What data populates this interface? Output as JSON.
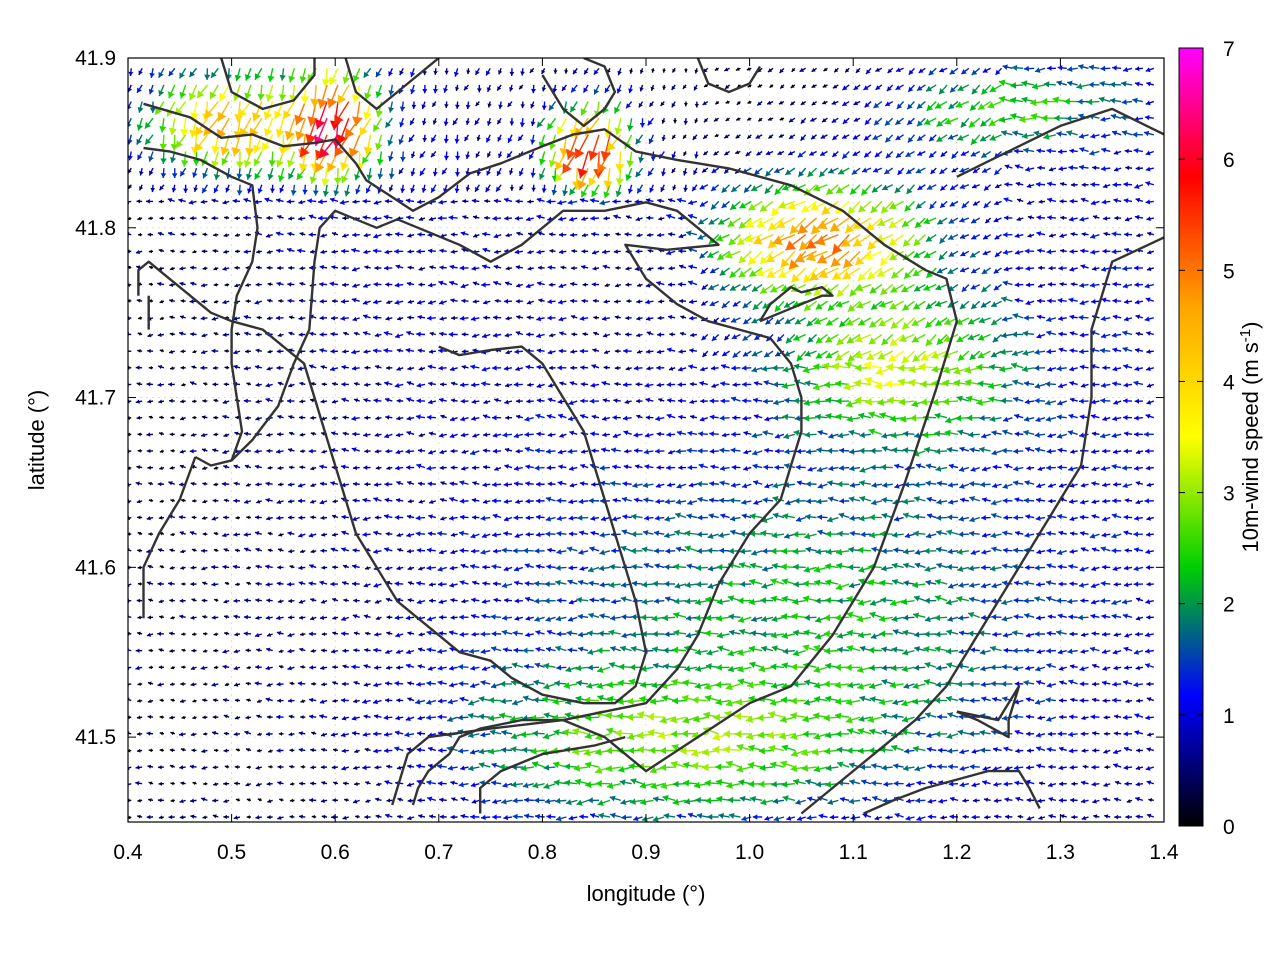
{
  "chart_data": {
    "type": "vector-field",
    "xlabel": "longitude (°)",
    "ylabel": "latitude (°)",
    "xlim": [
      0.4,
      1.4
    ],
    "ylim": [
      41.45,
      41.9
    ],
    "xticks": [
      "0.4",
      "0.5",
      "0.6",
      "0.7",
      "0.8",
      "0.9",
      "1.0",
      "1.1",
      "1.2",
      "1.3",
      "1.4"
    ],
    "yticks": [
      "41.5",
      "41.6",
      "41.7",
      "41.8",
      "41.9"
    ],
    "xtick_values": [
      0.4,
      0.5,
      0.6,
      0.7,
      0.8,
      0.9,
      1.0,
      1.1,
      1.2,
      1.3,
      1.4
    ],
    "ytick_values": [
      41.5,
      41.6,
      41.7,
      41.8,
      41.9
    ],
    "colorbar": {
      "label": "10m-wind speed (m s-1)",
      "label_main": "10m-wind speed (m s",
      "label_sup": "-1",
      "label_close": ")",
      "range": [
        0,
        7
      ],
      "ticks": [
        "0",
        "1",
        "2",
        "3",
        "4",
        "5",
        "6",
        "7"
      ],
      "tick_values": [
        0,
        1,
        2,
        3,
        4,
        5,
        6,
        7
      ],
      "colormap": "black-blue-green-yellow-red-magenta",
      "stops": [
        "#000000",
        "#0000ff",
        "#00d000",
        "#ffff00",
        "#ffa500",
        "#ff0000",
        "#ff00ff"
      ]
    },
    "vector_grid": {
      "dlon": 0.0105,
      "dlat": 0.0098,
      "note_direction": "predominantly easterly/northeasterly flow"
    },
    "wind_regions": [
      {
        "lon": [
          0.4,
          0.95
        ],
        "lat": [
          41.45,
          41.8
        ],
        "speed": 0.6
      },
      {
        "lon": [
          0.75,
          1.4
        ],
        "lat": [
          41.45,
          41.7
        ],
        "speed": 2.2
      },
      {
        "lon": [
          0.4,
          0.6
        ],
        "lat": [
          41.83,
          41.9
        ],
        "speed": 4.5
      },
      {
        "lon": [
          0.55,
          0.65
        ],
        "lat": [
          41.83,
          41.9
        ],
        "speed": 6.5
      },
      {
        "lon": [
          0.8,
          0.9
        ],
        "lat": [
          41.82,
          41.88
        ],
        "speed": 6.0
      },
      {
        "lon": [
          0.95,
          1.2
        ],
        "lat": [
          41.75,
          41.84
        ],
        "speed": 5.0
      },
      {
        "lon": [
          1.0,
          1.3
        ],
        "lat": [
          41.66,
          41.78
        ],
        "speed": 3.3
      },
      {
        "lon": [
          0.7,
          1.2
        ],
        "lat": [
          41.45,
          41.55
        ],
        "speed": 3.0
      },
      {
        "lon": [
          1.1,
          1.4
        ],
        "lat": [
          41.84,
          41.9
        ],
        "speed": 2.5
      },
      {
        "lon": [
          1.3,
          1.4
        ],
        "lat": [
          41.58,
          41.82
        ],
        "speed": 1.2
      }
    ],
    "contours": [
      [
        [
          0.415,
          41.873
        ],
        [
          0.46,
          41.865
        ],
        [
          0.49,
          41.853
        ],
        [
          0.52,
          41.855
        ],
        [
          0.55,
          41.848
        ],
        [
          0.58,
          41.85
        ],
        [
          0.6,
          41.852
        ],
        [
          0.62,
          41.838
        ],
        [
          0.63,
          41.828
        ],
        [
          0.65,
          41.82
        ],
        [
          0.675,
          41.81
        ],
        [
          0.7,
          41.818
        ],
        [
          0.73,
          41.832
        ],
        [
          0.76,
          41.838
        ],
        [
          0.8,
          41.848
        ],
        [
          0.83,
          41.855
        ],
        [
          0.86,
          41.858
        ],
        [
          0.89,
          41.845
        ],
        [
          0.93,
          41.84
        ],
        [
          0.98,
          41.835
        ],
        [
          1.04,
          41.825
        ],
        [
          1.09,
          41.81
        ],
        [
          1.13,
          41.79
        ],
        [
          1.17,
          41.775
        ],
        [
          1.19,
          41.77
        ],
        [
          1.2,
          41.745
        ],
        [
          1.18,
          41.705
        ],
        [
          1.15,
          41.65
        ],
        [
          1.12,
          41.6
        ],
        [
          1.08,
          41.56
        ],
        [
          1.04,
          41.53
        ],
        [
          1.0,
          41.52
        ],
        [
          0.95,
          41.5
        ],
        [
          0.9,
          41.48
        ],
        [
          0.86,
          41.5
        ],
        [
          0.82,
          41.51
        ],
        [
          0.75,
          41.505
        ],
        [
          0.69,
          41.5
        ],
        [
          0.67,
          41.49
        ],
        [
          0.655,
          41.46
        ]
      ],
      [
        [
          0.415,
          41.847
        ],
        [
          0.44,
          41.845
        ],
        [
          0.47,
          41.84
        ],
        [
          0.5,
          41.83
        ],
        [
          0.52,
          41.825
        ],
        [
          0.525,
          41.8
        ],
        [
          0.52,
          41.78
        ],
        [
          0.505,
          41.76
        ],
        [
          0.5,
          41.74
        ],
        [
          0.5,
          41.72
        ],
        [
          0.505,
          41.7
        ],
        [
          0.51,
          41.68
        ],
        [
          0.5,
          41.663
        ],
        [
          0.48,
          41.66
        ],
        [
          0.465,
          41.665
        ]
      ],
      [
        [
          0.5,
          41.663
        ],
        [
          0.52,
          41.675
        ],
        [
          0.545,
          41.695
        ],
        [
          0.56,
          41.72
        ],
        [
          0.575,
          41.74
        ],
        [
          0.58,
          41.78
        ],
        [
          0.585,
          41.8
        ],
        [
          0.6,
          41.81
        ],
        [
          0.62,
          41.805
        ],
        [
          0.64,
          41.8
        ],
        [
          0.66,
          41.805
        ],
        [
          0.68,
          41.8
        ],
        [
          0.7,
          41.795
        ],
        [
          0.72,
          41.79
        ],
        [
          0.75,
          41.78
        ],
        [
          0.78,
          41.79
        ],
        [
          0.8,
          41.8
        ],
        [
          0.82,
          41.81
        ],
        [
          0.84,
          41.81
        ],
        [
          0.86,
          41.81
        ],
        [
          0.9,
          41.815
        ],
        [
          0.93,
          41.81
        ],
        [
          0.95,
          41.8
        ],
        [
          0.97,
          41.79
        ],
        [
          0.92,
          41.787
        ],
        [
          0.88,
          41.79
        ],
        [
          0.9,
          41.77
        ],
        [
          0.93,
          41.755
        ],
        [
          0.96,
          41.745
        ],
        [
          0.99,
          41.74
        ],
        [
          1.02,
          41.735
        ],
        [
          1.04,
          41.72
        ],
        [
          1.05,
          41.7
        ],
        [
          1.05,
          41.68
        ],
        [
          1.04,
          41.66
        ],
        [
          1.03,
          41.64
        ],
        [
          1.0,
          41.62
        ],
        [
          0.97,
          41.59
        ],
        [
          0.95,
          41.56
        ],
        [
          0.93,
          41.54
        ],
        [
          0.9,
          41.52
        ],
        [
          0.86,
          41.515
        ],
        [
          0.82,
          41.51
        ],
        [
          0.78,
          41.51
        ],
        [
          0.74,
          41.505
        ],
        [
          0.72,
          41.5
        ],
        [
          0.71,
          41.49
        ],
        [
          0.69,
          41.48
        ],
        [
          0.68,
          41.47
        ],
        [
          0.675,
          41.46
        ]
      ],
      [
        [
          0.465,
          41.665
        ],
        [
          0.45,
          41.64
        ],
        [
          0.43,
          41.62
        ],
        [
          0.415,
          41.6
        ],
        [
          0.415,
          41.57
        ]
      ],
      [
        [
          0.7,
          41.73
        ],
        [
          0.72,
          41.725
        ],
        [
          0.75,
          41.728
        ],
        [
          0.78,
          41.73
        ],
        [
          0.8,
          41.72
        ],
        [
          0.82,
          41.7
        ],
        [
          0.83,
          41.69
        ],
        [
          0.84,
          41.68
        ],
        [
          0.85,
          41.66
        ],
        [
          0.86,
          41.64
        ],
        [
          0.87,
          41.62
        ],
        [
          0.88,
          41.6
        ],
        [
          0.89,
          41.58
        ],
        [
          0.9,
          41.55
        ],
        [
          0.89,
          41.53
        ],
        [
          0.87,
          41.52
        ],
        [
          0.84,
          41.52
        ],
        [
          0.8,
          41.525
        ],
        [
          0.77,
          41.535
        ],
        [
          0.75,
          41.545
        ],
        [
          0.72,
          41.55
        ],
        [
          0.7,
          41.56
        ],
        [
          0.68,
          41.57
        ],
        [
          0.66,
          41.58
        ],
        [
          0.64,
          41.6
        ],
        [
          0.62,
          41.62
        ],
        [
          0.61,
          41.64
        ],
        [
          0.6,
          41.66
        ],
        [
          0.59,
          41.68
        ],
        [
          0.58,
          41.7
        ],
        [
          0.57,
          41.72
        ],
        [
          0.55,
          41.73
        ],
        [
          0.53,
          41.74
        ],
        [
          0.5,
          41.745
        ],
        [
          0.48,
          41.75
        ],
        [
          0.46,
          41.76
        ],
        [
          0.44,
          41.77
        ],
        [
          0.42,
          41.78
        ],
        [
          0.41,
          41.775
        ],
        [
          0.41,
          41.76
        ]
      ],
      [
        [
          1.42,
          41.8
        ],
        [
          1.35,
          41.78
        ],
        [
          1.33,
          41.74
        ],
        [
          1.33,
          41.7
        ],
        [
          1.32,
          41.66
        ],
        [
          1.3,
          41.64
        ],
        [
          1.28,
          41.62
        ],
        [
          1.26,
          41.6
        ],
        [
          1.24,
          41.58
        ],
        [
          1.22,
          41.56
        ],
        [
          1.19,
          41.53
        ],
        [
          1.16,
          41.51
        ],
        [
          1.12,
          41.49
        ],
        [
          1.08,
          41.47
        ],
        [
          1.05,
          41.455
        ]
      ],
      [
        [
          1.2,
          41.83
        ],
        [
          1.3,
          41.86
        ],
        [
          1.35,
          41.87
        ],
        [
          1.4,
          41.855
        ]
      ],
      [
        [
          1.2,
          41.515
        ],
        [
          1.24,
          41.51
        ],
        [
          1.26,
          41.53
        ],
        [
          1.25,
          41.51
        ],
        [
          1.25,
          41.5
        ],
        [
          1.22,
          41.51
        ],
        [
          1.2,
          41.515
        ]
      ],
      [
        [
          1.11,
          41.455
        ],
        [
          1.14,
          41.463
        ],
        [
          1.17,
          41.47
        ],
        [
          1.2,
          41.475
        ],
        [
          1.23,
          41.48
        ],
        [
          1.26,
          41.48
        ],
        [
          1.27,
          41.47
        ],
        [
          1.28,
          41.458
        ]
      ],
      [
        [
          0.74,
          41.455
        ],
        [
          0.74,
          41.47
        ],
        [
          0.76,
          41.48
        ],
        [
          0.8,
          41.49
        ],
        [
          0.85,
          41.495
        ],
        [
          0.88,
          41.5
        ]
      ],
      [
        [
          0.61,
          41.9
        ],
        [
          0.62,
          41.88
        ],
        [
          0.64,
          41.87
        ],
        [
          0.66,
          41.88
        ],
        [
          0.68,
          41.89
        ],
        [
          0.7,
          41.9
        ]
      ],
      [
        [
          1.01,
          41.745
        ],
        [
          1.03,
          41.75
        ],
        [
          1.05,
          41.755
        ],
        [
          1.07,
          41.76
        ],
        [
          1.08,
          41.76
        ],
        [
          1.07,
          41.765
        ],
        [
          1.05,
          41.762
        ],
        [
          1.04,
          41.765
        ],
        [
          1.02,
          41.755
        ],
        [
          1.01,
          41.745
        ]
      ],
      [
        [
          0.8,
          41.89
        ],
        [
          0.82,
          41.87
        ],
        [
          0.84,
          41.86
        ],
        [
          0.86,
          41.87
        ],
        [
          0.87,
          41.88
        ],
        [
          0.86,
          41.895
        ],
        [
          0.84,
          41.9
        ]
      ],
      [
        [
          0.42,
          41.76
        ],
        [
          0.42,
          41.74
        ]
      ],
      [
        [
          0.49,
          41.9
        ],
        [
          0.5,
          41.88
        ],
        [
          0.53,
          41.87
        ],
        [
          0.56,
          41.875
        ],
        [
          0.58,
          41.89
        ],
        [
          0.58,
          41.9
        ]
      ],
      [
        [
          0.95,
          41.9
        ],
        [
          0.96,
          41.885
        ],
        [
          0.98,
          41.88
        ],
        [
          1.0,
          41.885
        ],
        [
          1.01,
          41.895
        ]
      ]
    ]
  }
}
